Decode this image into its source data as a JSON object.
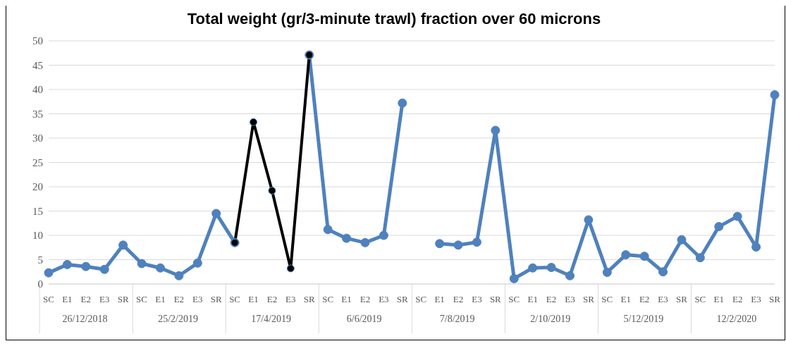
{
  "chart_data": {
    "type": "line",
    "title": "Total weight (gr/3-minute trawl) fraction over 60 microns",
    "categories": [
      "SC",
      "E1",
      "E2",
      "E3",
      "SR",
      "SC",
      "E1",
      "E2",
      "E3",
      "SR",
      "SC",
      "E1",
      "E2",
      "E3",
      "SR",
      "SC",
      "E1",
      "E2",
      "E3",
      "SR",
      "SC",
      "E1",
      "E2",
      "E3",
      "SR",
      "SC",
      "E1",
      "E2",
      "E3",
      "SR",
      "SC",
      "E1",
      "E2",
      "E3",
      "SR",
      "SC",
      "E1",
      "E2",
      "E3",
      "SR"
    ],
    "annotations": [
      "26/12/2018",
      "25/2/2019",
      "17/4/2019",
      "6/6/2019",
      "7/8/2019",
      "2/10/2019",
      "5/12/2019",
      "12/2/2020"
    ],
    "series": [
      {
        "color": "#4f81bd",
        "values": [
          2.3,
          4,
          3.6,
          3,
          8,
          4.2,
          3.3,
          1.7,
          4.3,
          14.5,
          8.5,
          null,
          null,
          null,
          47.1,
          11.2,
          9.4,
          8.5,
          10,
          37.2,
          null,
          8.3,
          8,
          8.6,
          31.6,
          1.1,
          3.3,
          3.4,
          1.7,
          13.2,
          2.4,
          6,
          5.7,
          2.5,
          9.1,
          5.4,
          11.8,
          13.9,
          7.6,
          38.9
        ]
      },
      {
        "color": "#000000",
        "values": [
          null,
          null,
          null,
          null,
          null,
          null,
          null,
          null,
          null,
          null,
          8.5,
          33.3,
          19.2,
          3.2,
          47.1,
          null,
          null,
          null,
          null,
          null,
          null,
          null,
          null,
          null,
          null,
          null,
          null,
          null,
          null,
          null,
          null,
          null,
          null,
          null,
          null,
          null,
          null,
          null,
          null,
          null
        ]
      }
    ],
    "ylim": [
      0,
      50
    ],
    "yticks": [
      0,
      5,
      10,
      15,
      20,
      25,
      30,
      35,
      40,
      45,
      50
    ],
    "grid": "y",
    "marker": "circle",
    "line_style": "solid"
  }
}
